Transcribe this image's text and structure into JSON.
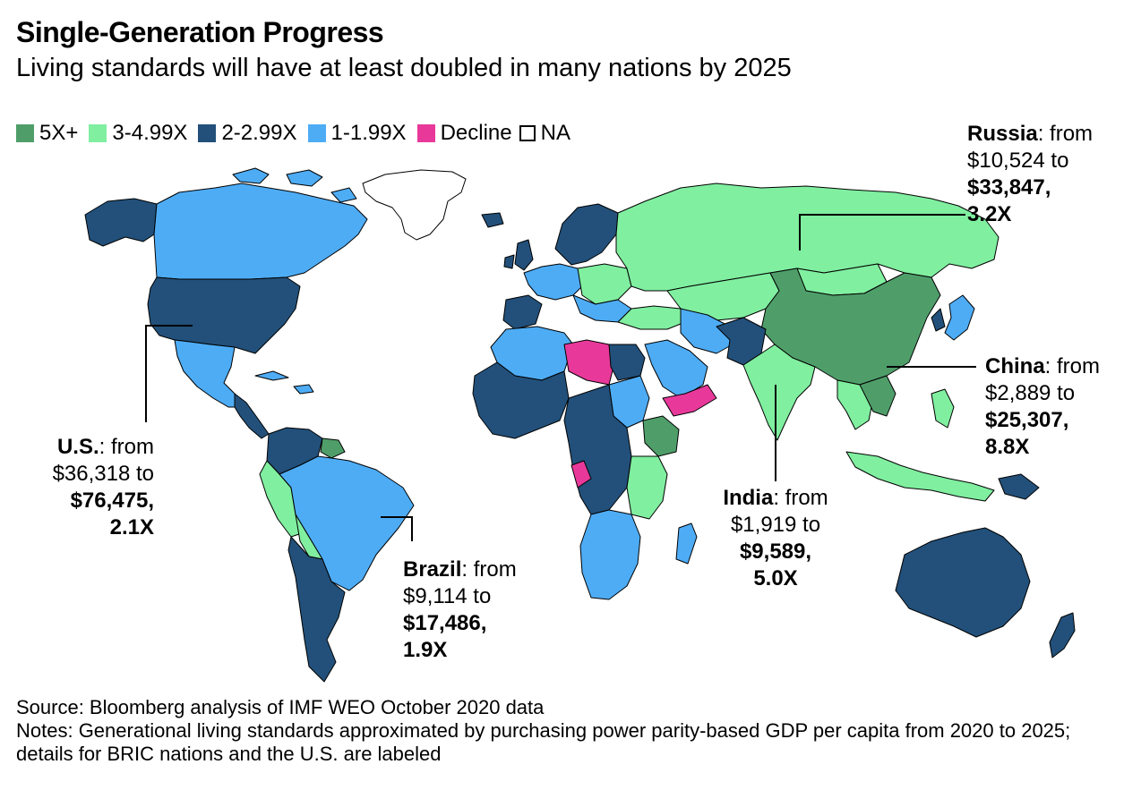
{
  "title": "Single-Generation Progress",
  "subtitle": "Living standards will have at least doubled in many nations by 2025",
  "legend": [
    {
      "label": "5X+",
      "color": "#4f9e6a"
    },
    {
      "label": "3-4.99X",
      "color": "#80efa0"
    },
    {
      "label": "2-2.99X",
      "color": "#22507a"
    },
    {
      "label": "1-1.99X",
      "color": "#4eacf5"
    },
    {
      "label": "Decline",
      "color": "#e8399a"
    },
    {
      "label": "NA",
      "color": "#ffffff"
    }
  ],
  "annotations": {
    "russia": {
      "country": "Russia",
      "from_label": ": from",
      "from_value": "$10,524 to",
      "to_value": "$33,847,",
      "multiple": "3.2X"
    },
    "china": {
      "country": "China",
      "from_label": ": from",
      "from_value": "$2,889 to",
      "to_value": "$25,307,",
      "multiple": "8.8X"
    },
    "india": {
      "country": "India",
      "from_label": ": from",
      "from_value": "$1,919 to",
      "to_value": "$9,589,",
      "multiple": "5.0X"
    },
    "us": {
      "country": "U.S.",
      "from_label": ": from",
      "from_value": "$36,318 to",
      "to_value": "$76,475,",
      "multiple": "2.1X"
    },
    "brazil": {
      "country": "Brazil",
      "from_label": ": from",
      "from_value": "$9,114 to",
      "to_value": "$17,486,",
      "multiple": "1.9X"
    }
  },
  "source": "Source: Bloomberg analysis of IMF WEO October 2020 data",
  "notes": "Notes: Generational living standards approximated by purchasing power parity-based GDP per capita from 2020 to 2025; details for BRIC nations and the U.S. are labeled"
}
